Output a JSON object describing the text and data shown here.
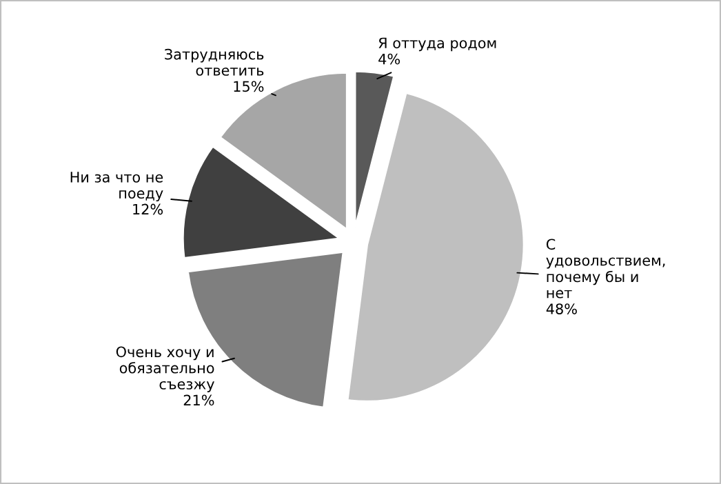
{
  "chart_data": {
    "type": "pie",
    "categories": [
      "Я оттуда родом",
      "С\nудовольствием,\nпочему бы и\nнет",
      "Очень хочу и\nобязательно\nсъезжу",
      "Ни за что не\nпоеду",
      "Затрудняюсь\nответить"
    ],
    "values": [
      4,
      48,
      21,
      12,
      15
    ],
    "value_labels": [
      "4%",
      "48%",
      "21%",
      "12%",
      "15%"
    ],
    "colors": [
      "#595959",
      "#bfbfbf",
      "#7f7f7f",
      "#404040",
      "#a6a6a6"
    ],
    "legend": false
  }
}
